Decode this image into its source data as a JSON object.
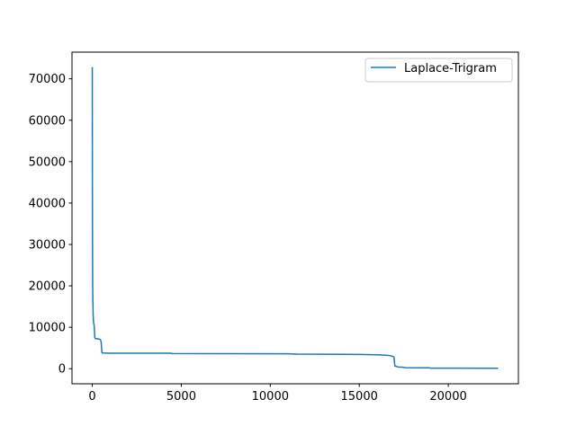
{
  "chart_data": {
    "type": "line",
    "title": "",
    "xlabel": "",
    "ylabel": "",
    "xlim": [
      -1140,
      23940
    ],
    "ylim": [
      -3640,
      76440
    ],
    "x_ticks": [
      0,
      5000,
      10000,
      15000,
      20000
    ],
    "x_tick_labels": [
      "0",
      "5000",
      "10000",
      "15000",
      "20000"
    ],
    "y_ticks": [
      0,
      10000,
      20000,
      30000,
      40000,
      50000,
      60000,
      70000
    ],
    "y_tick_labels": [
      "0",
      "10000",
      "20000",
      "30000",
      "40000",
      "50000",
      "60000",
      "70000"
    ],
    "grid": false,
    "legend": {
      "position": "top-right",
      "entries": [
        "Laplace-Trigram"
      ]
    },
    "series": [
      {
        "name": "Laplace-Trigram",
        "color": "#1f77b4",
        "points": [
          [
            0,
            72800
          ],
          [
            3,
            60000
          ],
          [
            6,
            45000
          ],
          [
            10,
            35000
          ],
          [
            15,
            27000
          ],
          [
            20,
            21000
          ],
          [
            30,
            16500
          ],
          [
            45,
            13500
          ],
          [
            60,
            11800
          ],
          [
            80,
            10900
          ],
          [
            100,
            10700
          ],
          [
            120,
            9500
          ],
          [
            140,
            7500
          ],
          [
            160,
            7300
          ],
          [
            300,
            7200
          ],
          [
            430,
            7100
          ],
          [
            470,
            6900
          ],
          [
            500,
            6400
          ],
          [
            520,
            5000
          ],
          [
            540,
            4000
          ],
          [
            560,
            3800
          ],
          [
            1000,
            3750
          ],
          [
            4400,
            3730
          ],
          [
            4500,
            3650
          ],
          [
            11000,
            3600
          ],
          [
            11500,
            3520
          ],
          [
            15000,
            3450
          ],
          [
            16000,
            3350
          ],
          [
            16500,
            3250
          ],
          [
            16800,
            3100
          ],
          [
            16950,
            2800
          ],
          [
            16980,
            1500
          ],
          [
            17000,
            650
          ],
          [
            17200,
            400
          ],
          [
            17400,
            380
          ],
          [
            17600,
            250
          ],
          [
            18950,
            200
          ],
          [
            19000,
            130
          ],
          [
            22800,
            100
          ]
        ]
      }
    ]
  }
}
